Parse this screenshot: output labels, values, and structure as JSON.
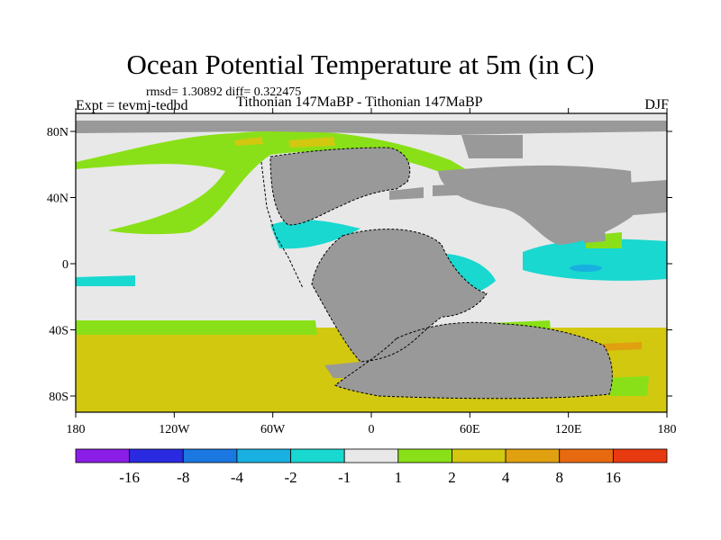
{
  "title": "Ocean Potential Temperature at 5m (in C)",
  "stats": "rmsd= 1.30892 diff= 0.322475",
  "expt": "Expt = tevmj-tedbd",
  "center_label": "Tithonian 147MaBP - Tithonian 147MaBP",
  "season": "DJF",
  "map": {
    "lon_ticks": [
      "180",
      "120W",
      "60W",
      "0",
      "60E",
      "120E",
      "180"
    ],
    "lat_ticks": [
      "80N",
      "40N",
      "0",
      "40S",
      "80S"
    ]
  },
  "colorbar": {
    "labels": [
      "-16",
      "-8",
      "-4",
      "-2",
      "-1",
      "1",
      "2",
      "4",
      "8",
      "16"
    ],
    "colors": [
      "#8a1ee6",
      "#2a2ae0",
      "#1a78e0",
      "#18b0e0",
      "#18d8d0",
      "#e8e8e8",
      "#8ae018",
      "#d2c810",
      "#e0a010",
      "#e86a10",
      "#e83a10"
    ]
  },
  "palette": {
    "land": "#999999",
    "neutral": "#e8e8e8",
    "warm1": "#8ae018",
    "warm2": "#d2c810",
    "warm3": "#e0a010",
    "warm4": "#e86a10",
    "cool1": "#18d8d0",
    "cool2": "#18b0e0"
  }
}
